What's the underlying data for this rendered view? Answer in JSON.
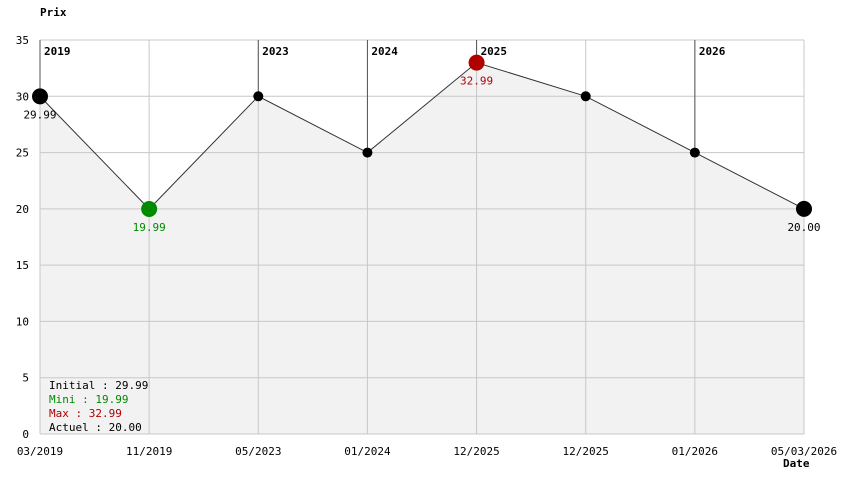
{
  "chart_data": {
    "type": "line",
    "title": "Prix",
    "x_label": "Date",
    "categories": [
      "03/2019",
      "11/2019",
      "05/2023",
      "01/2024",
      "12/2025",
      "12/2025",
      "01/2026",
      "05/03/2026"
    ],
    "values": [
      29.99,
      19.99,
      30,
      25,
      32.99,
      30,
      25,
      20.0
    ],
    "value_labels": [
      "29.99",
      "19.99",
      null,
      null,
      "32.99",
      null,
      null,
      "20.00"
    ],
    "point_colors": [
      "#000000",
      "#008a00",
      "#000000",
      "#000000",
      "#b00000",
      "#000000",
      "#000000",
      "#000000"
    ],
    "line_color": "#333333",
    "area_color": "#f2f2f2",
    "ylim": [
      0,
      35
    ],
    "yticks": [
      0,
      5,
      10,
      15,
      20,
      25,
      30,
      35
    ],
    "grid": true,
    "year_markers": [
      {
        "label": "2019",
        "index": 0
      },
      {
        "label": "2023",
        "index": 2
      },
      {
        "label": "2024",
        "index": 3
      },
      {
        "label": "2025",
        "index": 4
      },
      {
        "label": "2026",
        "index": 6
      }
    ],
    "legend": [
      {
        "text": "Initial : 29.99",
        "color": "#000000"
      },
      {
        "text": "Mini : 19.99",
        "color": "#008a00"
      },
      {
        "text": "Max : 32.99",
        "color": "#b00000"
      },
      {
        "text": "Actuel : 20.00",
        "color": "#000000"
      }
    ]
  }
}
